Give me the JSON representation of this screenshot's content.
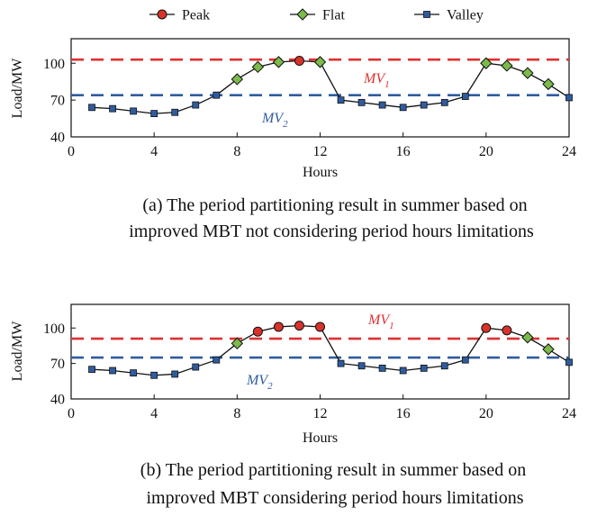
{
  "legend": [
    {
      "name": "Peak",
      "marker": "circle",
      "color": "#d9322b"
    },
    {
      "name": "Flat",
      "marker": "diamond",
      "color": "#7cba4a"
    },
    {
      "name": "Valley",
      "marker": "square",
      "color": "#2f5c9e"
    }
  ],
  "colors": {
    "line": "#111111",
    "mv1": "#e03030",
    "mv2": "#2f5c9e",
    "peak": "#d9322b",
    "flat": "#7cba4a",
    "valley": "#2f5c9e"
  },
  "chart_data": [
    {
      "type": "line",
      "caption_line1": "(a) The period partitioning result in summer based on",
      "caption_line2": "improved MBT  not considering period hours limitations",
      "xlabel": "Hours",
      "ylabel": "Load/MW",
      "xlim": [
        0,
        24
      ],
      "ylim": [
        40,
        120
      ],
      "xticks": [
        0,
        4,
        8,
        12,
        16,
        20,
        24
      ],
      "yticks": [
        40,
        70,
        100
      ],
      "grid": false,
      "legend_position": "top-center",
      "mv1": {
        "label": "MV",
        "sub": "1",
        "value": 103
      },
      "mv2": {
        "label": "MV",
        "sub": "2",
        "value": 74
      },
      "x": [
        1,
        2,
        3,
        4,
        5,
        6,
        7,
        8,
        9,
        10,
        11,
        12,
        13,
        14,
        15,
        16,
        17,
        18,
        19,
        20,
        21,
        22,
        23,
        24
      ],
      "y": [
        64,
        63,
        61,
        59,
        60,
        66,
        74,
        87,
        97,
        101,
        102,
        101,
        70,
        68,
        66,
        64,
        66,
        68,
        73,
        100,
        98,
        92,
        83,
        72
      ],
      "period": [
        "valley",
        "valley",
        "valley",
        "valley",
        "valley",
        "valley",
        "valley",
        "flat",
        "flat",
        "flat",
        "peak",
        "flat",
        "valley",
        "valley",
        "valley",
        "valley",
        "valley",
        "valley",
        "valley",
        "flat",
        "flat",
        "flat",
        "flat",
        "valley"
      ]
    },
    {
      "type": "line",
      "caption_line1": "(b) The period partitioning result in summer based on",
      "caption_line2": "improved MBT considering period hours limitations",
      "xlabel": "Hours",
      "ylabel": "Load/MW",
      "xlim": [
        0,
        24
      ],
      "ylim": [
        40,
        120
      ],
      "xticks": [
        0,
        4,
        8,
        12,
        16,
        20,
        24
      ],
      "yticks": [
        40,
        70,
        100
      ],
      "grid": false,
      "legend_position": "none",
      "mv1": {
        "label": "MV",
        "sub": "1",
        "value": 91
      },
      "mv2": {
        "label": "MV",
        "sub": "2",
        "value": 75
      },
      "x": [
        1,
        2,
        3,
        4,
        5,
        6,
        7,
        8,
        9,
        10,
        11,
        12,
        13,
        14,
        15,
        16,
        17,
        18,
        19,
        20,
        21,
        22,
        23,
        24
      ],
      "y": [
        65,
        64,
        62,
        60,
        61,
        67,
        73,
        87,
        97,
        101,
        102,
        101,
        70,
        68,
        66,
        64,
        66,
        68,
        73,
        100,
        98,
        92,
        82,
        71
      ],
      "period": [
        "valley",
        "valley",
        "valley",
        "valley",
        "valley",
        "valley",
        "valley",
        "flat",
        "peak",
        "peak",
        "peak",
        "peak",
        "valley",
        "valley",
        "valley",
        "valley",
        "valley",
        "valley",
        "valley",
        "peak",
        "peak",
        "flat",
        "flat",
        "valley"
      ]
    }
  ]
}
